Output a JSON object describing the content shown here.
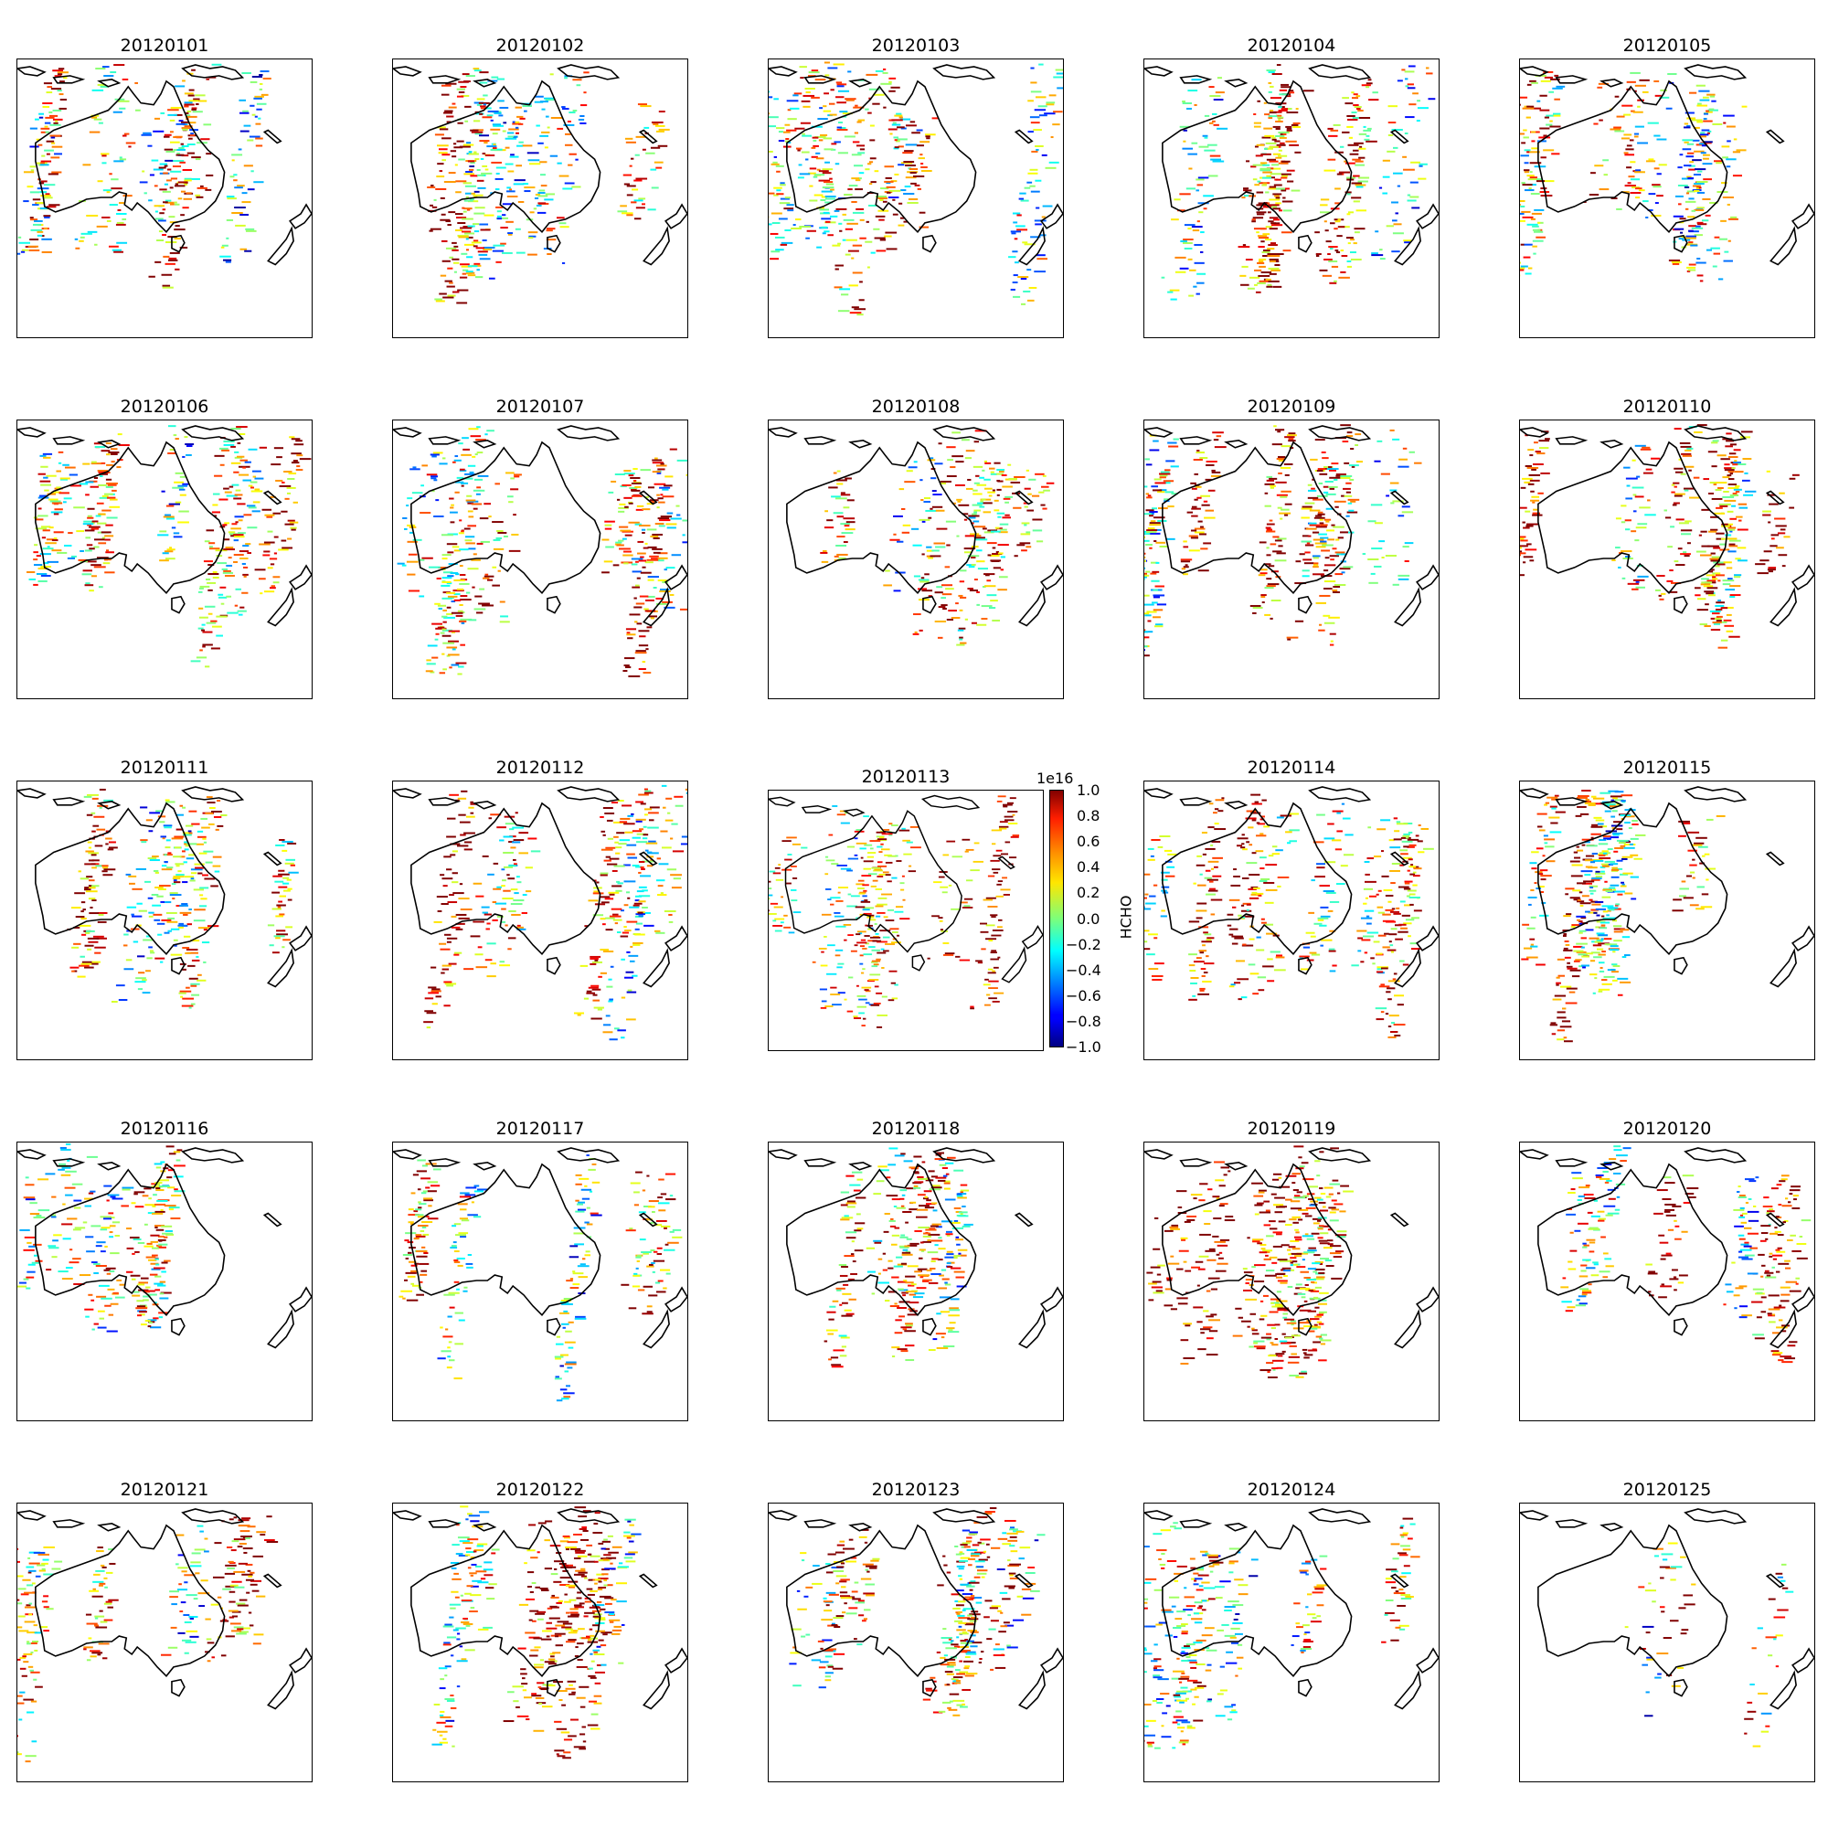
{
  "panels": [
    {
      "title": "20120101",
      "seed": 11
    },
    {
      "title": "20120102",
      "seed": 23
    },
    {
      "title": "20120103",
      "seed": 37
    },
    {
      "title": "20120104",
      "seed": 41
    },
    {
      "title": "20120105",
      "seed": 53
    },
    {
      "title": "20120106",
      "seed": 67
    },
    {
      "title": "20120107",
      "seed": 71
    },
    {
      "title": "20120108",
      "seed": 83
    },
    {
      "title": "20120109",
      "seed": 97
    },
    {
      "title": "20120110",
      "seed": 101
    },
    {
      "title": "20120111",
      "seed": 113
    },
    {
      "title": "20120112",
      "seed": 127
    },
    {
      "title": "20120113",
      "seed": 131
    },
    {
      "title": "20120114",
      "seed": 149
    },
    {
      "title": "20120115",
      "seed": 157
    },
    {
      "title": "20120116",
      "seed": 163
    },
    {
      "title": "20120117",
      "seed": 173
    },
    {
      "title": "20120118",
      "seed": 181
    },
    {
      "title": "20120119",
      "seed": 191
    },
    {
      "title": "20120120",
      "seed": 199
    },
    {
      "title": "20120121",
      "seed": 211
    },
    {
      "title": "20120122",
      "seed": 223
    },
    {
      "title": "20120123",
      "seed": 227
    },
    {
      "title": "20120124",
      "seed": 233
    },
    {
      "title": "20120125",
      "seed": 241
    }
  ],
  "colorbar": {
    "exponent": "1e16",
    "label": "HCHO",
    "ticks": [
      "1.0",
      "0.8",
      "0.6",
      "0.4",
      "0.2",
      "0.0",
      "−0.2",
      "−0.4",
      "−0.6",
      "−0.8",
      "−1.0"
    ],
    "vmin": -1.0,
    "vmax": 1.0,
    "colormap": "jet"
  },
  "style": {
    "coast_color": "#000000",
    "frame_color": "#000000"
  }
}
